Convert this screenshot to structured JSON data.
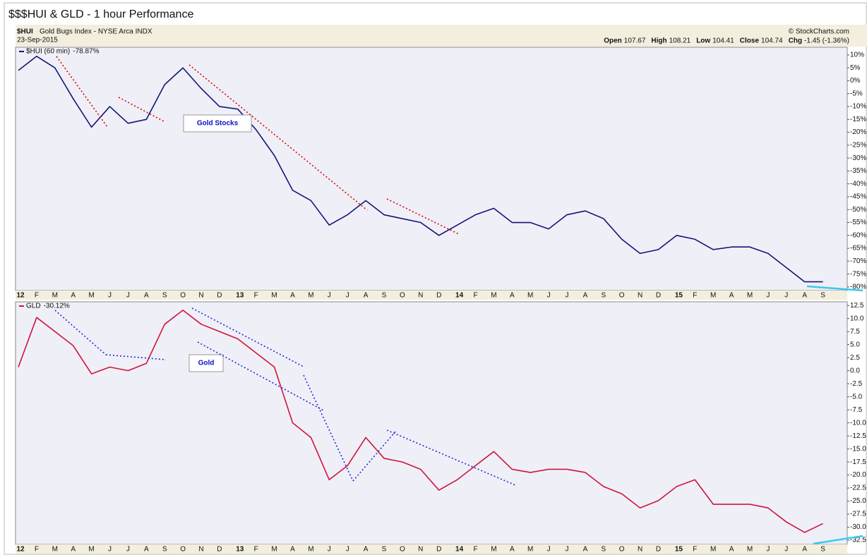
{
  "header": {
    "title": "$$$HUI & GLD - 1 hour Performance",
    "symbol": "$HUI",
    "description": "Gold Bugs Index - NYSE Arca INDX",
    "date": "23-Sep-2015",
    "source": "© StockCharts.com",
    "stats": [
      {
        "label": "Open",
        "value": 107.67
      },
      {
        "label": "High",
        "value": 108.21
      },
      {
        "label": "Low",
        "value": 104.41
      },
      {
        "label": "Close",
        "value": 104.74
      },
      {
        "label": "Chg",
        "value": "-1.45 (-1.36%)"
      }
    ]
  },
  "chart_data": [
    {
      "type": "line",
      "annotation": "Gold Stocks",
      "categories": [
        "12",
        "F",
        "M",
        "A",
        "M",
        "J",
        "J",
        "A",
        "S",
        "O",
        "N",
        "D",
        "13",
        "F",
        "M",
        "A",
        "M",
        "J",
        "J",
        "A",
        "S",
        "O",
        "N",
        "D",
        "14",
        "F",
        "M",
        "A",
        "M",
        "J",
        "J",
        "A",
        "S",
        "O",
        "N",
        "D",
        "15",
        "F",
        "M",
        "A",
        "M",
        "J",
        "J",
        "A",
        "S"
      ],
      "series": [
        {
          "name": "$HUI (60 min)",
          "last_label": "-78.87%",
          "color": "#14147a",
          "values": [
            4,
            9.5,
            5,
            -7,
            -18,
            -10,
            -16.5,
            -15,
            -1.5,
            5,
            -3,
            -10,
            -11,
            -19,
            -29,
            -42.5,
            -46.5,
            -56,
            -52,
            -46.5,
            -52,
            -53.5,
            -55,
            -60,
            -56,
            -52,
            -49.5,
            -55,
            -55,
            -57.5,
            -52,
            -50.5,
            -53.5,
            -61.5,
            -67,
            -65.5,
            -60,
            -61.5,
            -65.5,
            -64.5,
            -64.5,
            -67,
            -72.5,
            -78,
            -78
          ]
        }
      ],
      "ylim": [
        -81.4,
        13
      ],
      "yticks": [
        {
          "value": 10,
          "label": "10%"
        },
        {
          "value": 5,
          "label": "5%"
        },
        {
          "value": 0,
          "label": "0%"
        },
        {
          "value": -5,
          "label": "-5%"
        },
        {
          "value": -10,
          "label": "-10%"
        },
        {
          "value": -15,
          "label": "-15%"
        },
        {
          "value": -20,
          "label": "-20%"
        },
        {
          "value": -25,
          "label": "-25%"
        },
        {
          "value": -30,
          "label": "-30%"
        },
        {
          "value": -35,
          "label": "-35%"
        },
        {
          "value": -40,
          "label": "-40%"
        },
        {
          "value": -45,
          "label": "-45%"
        },
        {
          "value": -50,
          "label": "-50%"
        },
        {
          "value": -55,
          "label": "-55%"
        },
        {
          "value": -60,
          "label": "-60%"
        },
        {
          "value": -65,
          "label": "-65%"
        },
        {
          "value": -70,
          "label": "-70%"
        },
        {
          "value": -75,
          "label": "-75%"
        },
        {
          "value": -80,
          "label": "-80%"
        }
      ],
      "grid": false
    },
    {
      "type": "line",
      "annotation": "Gold",
      "categories": [
        "12",
        "F",
        "M",
        "A",
        "M",
        "J",
        "J",
        "A",
        "S",
        "O",
        "N",
        "D",
        "13",
        "F",
        "M",
        "A",
        "M",
        "J",
        "J",
        "A",
        "S",
        "O",
        "N",
        "D",
        "14",
        "F",
        "M",
        "A",
        "M",
        "J",
        "J",
        "A",
        "S",
        "O",
        "N",
        "D",
        "15",
        "F",
        "M",
        "A",
        "M",
        "J",
        "J",
        "A",
        "S"
      ],
      "series": [
        {
          "name": "GLD",
          "last_label": "-30.12%",
          "color": "#d0143c",
          "values": [
            0.7,
            10.2,
            7.5,
            4.8,
            -0.6,
            0.7,
            0,
            1.4,
            8.9,
            11.6,
            8.9,
            7.5,
            6.1,
            3.4,
            0.7,
            -10,
            -12.8,
            -20.9,
            -18.2,
            -12.8,
            -16.8,
            -17.5,
            -18.9,
            -22.9,
            -20.9,
            -18.2,
            -15.5,
            -18.9,
            -19.5,
            -18.9,
            -18.9,
            -19.5,
            -22.2,
            -23.6,
            -26.3,
            -24.9,
            -22.2,
            -20.9,
            -25.6,
            -25.6,
            -25.6,
            -26.3,
            -29,
            -31,
            -29.3
          ]
        }
      ],
      "ylim": [
        -33.3,
        13.2
      ],
      "yticks": [
        12.5,
        {
          "value": 10,
          "label": "10.0"
        },
        7.5,
        {
          "value": 5,
          "label": "5.0"
        },
        2.5,
        {
          "value": 0,
          "label": "0.0"
        },
        -2.5,
        {
          "value": -5,
          "label": "-5.0"
        },
        -7.5,
        {
          "value": -10,
          "label": "-10.0"
        },
        -12.5,
        {
          "value": -15,
          "label": "-15.0"
        },
        -17.5,
        {
          "value": -20,
          "label": "-20.0"
        },
        -22.5,
        {
          "value": -25,
          "label": "-25.0"
        },
        -27.5,
        {
          "value": -30,
          "label": "-30.0"
        },
        -32.5
      ],
      "grid": false
    }
  ]
}
